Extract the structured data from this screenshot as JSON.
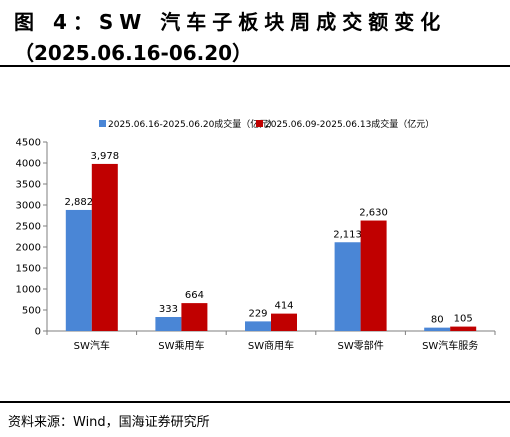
{
  "title_line1": "图 4：SW 汽车子板块周成交额变化",
  "title_line2": "（2025.06.16-06.20）",
  "source": "资料来源：Wind，国海证券研究所",
  "colors": {
    "series1": "#4a86d6",
    "series2": "#c00000",
    "axis": "#7f7f7f"
  },
  "chart_data": {
    "type": "bar",
    "categories": [
      "SW汽车",
      "SW乘用车",
      "SW商用车",
      "SW零部件",
      "SW汽车服务"
    ],
    "series": [
      {
        "name": "2025.06.16-2025.06.20成交量（亿元）",
        "values": [
          2882,
          333,
          229,
          2113,
          80
        ]
      },
      {
        "name": "2025.06.09-2025.06.13成交量（亿元）",
        "values": [
          3978,
          664,
          414,
          2630,
          105
        ]
      }
    ],
    "yticks": [
      "0",
      "500",
      "1000",
      "1500",
      "2000",
      "2500",
      "3000",
      "3500",
      "4000",
      "4500"
    ],
    "ylim": [
      0,
      4500
    ],
    "grid": false,
    "legend": "top",
    "data_labels": true
  }
}
